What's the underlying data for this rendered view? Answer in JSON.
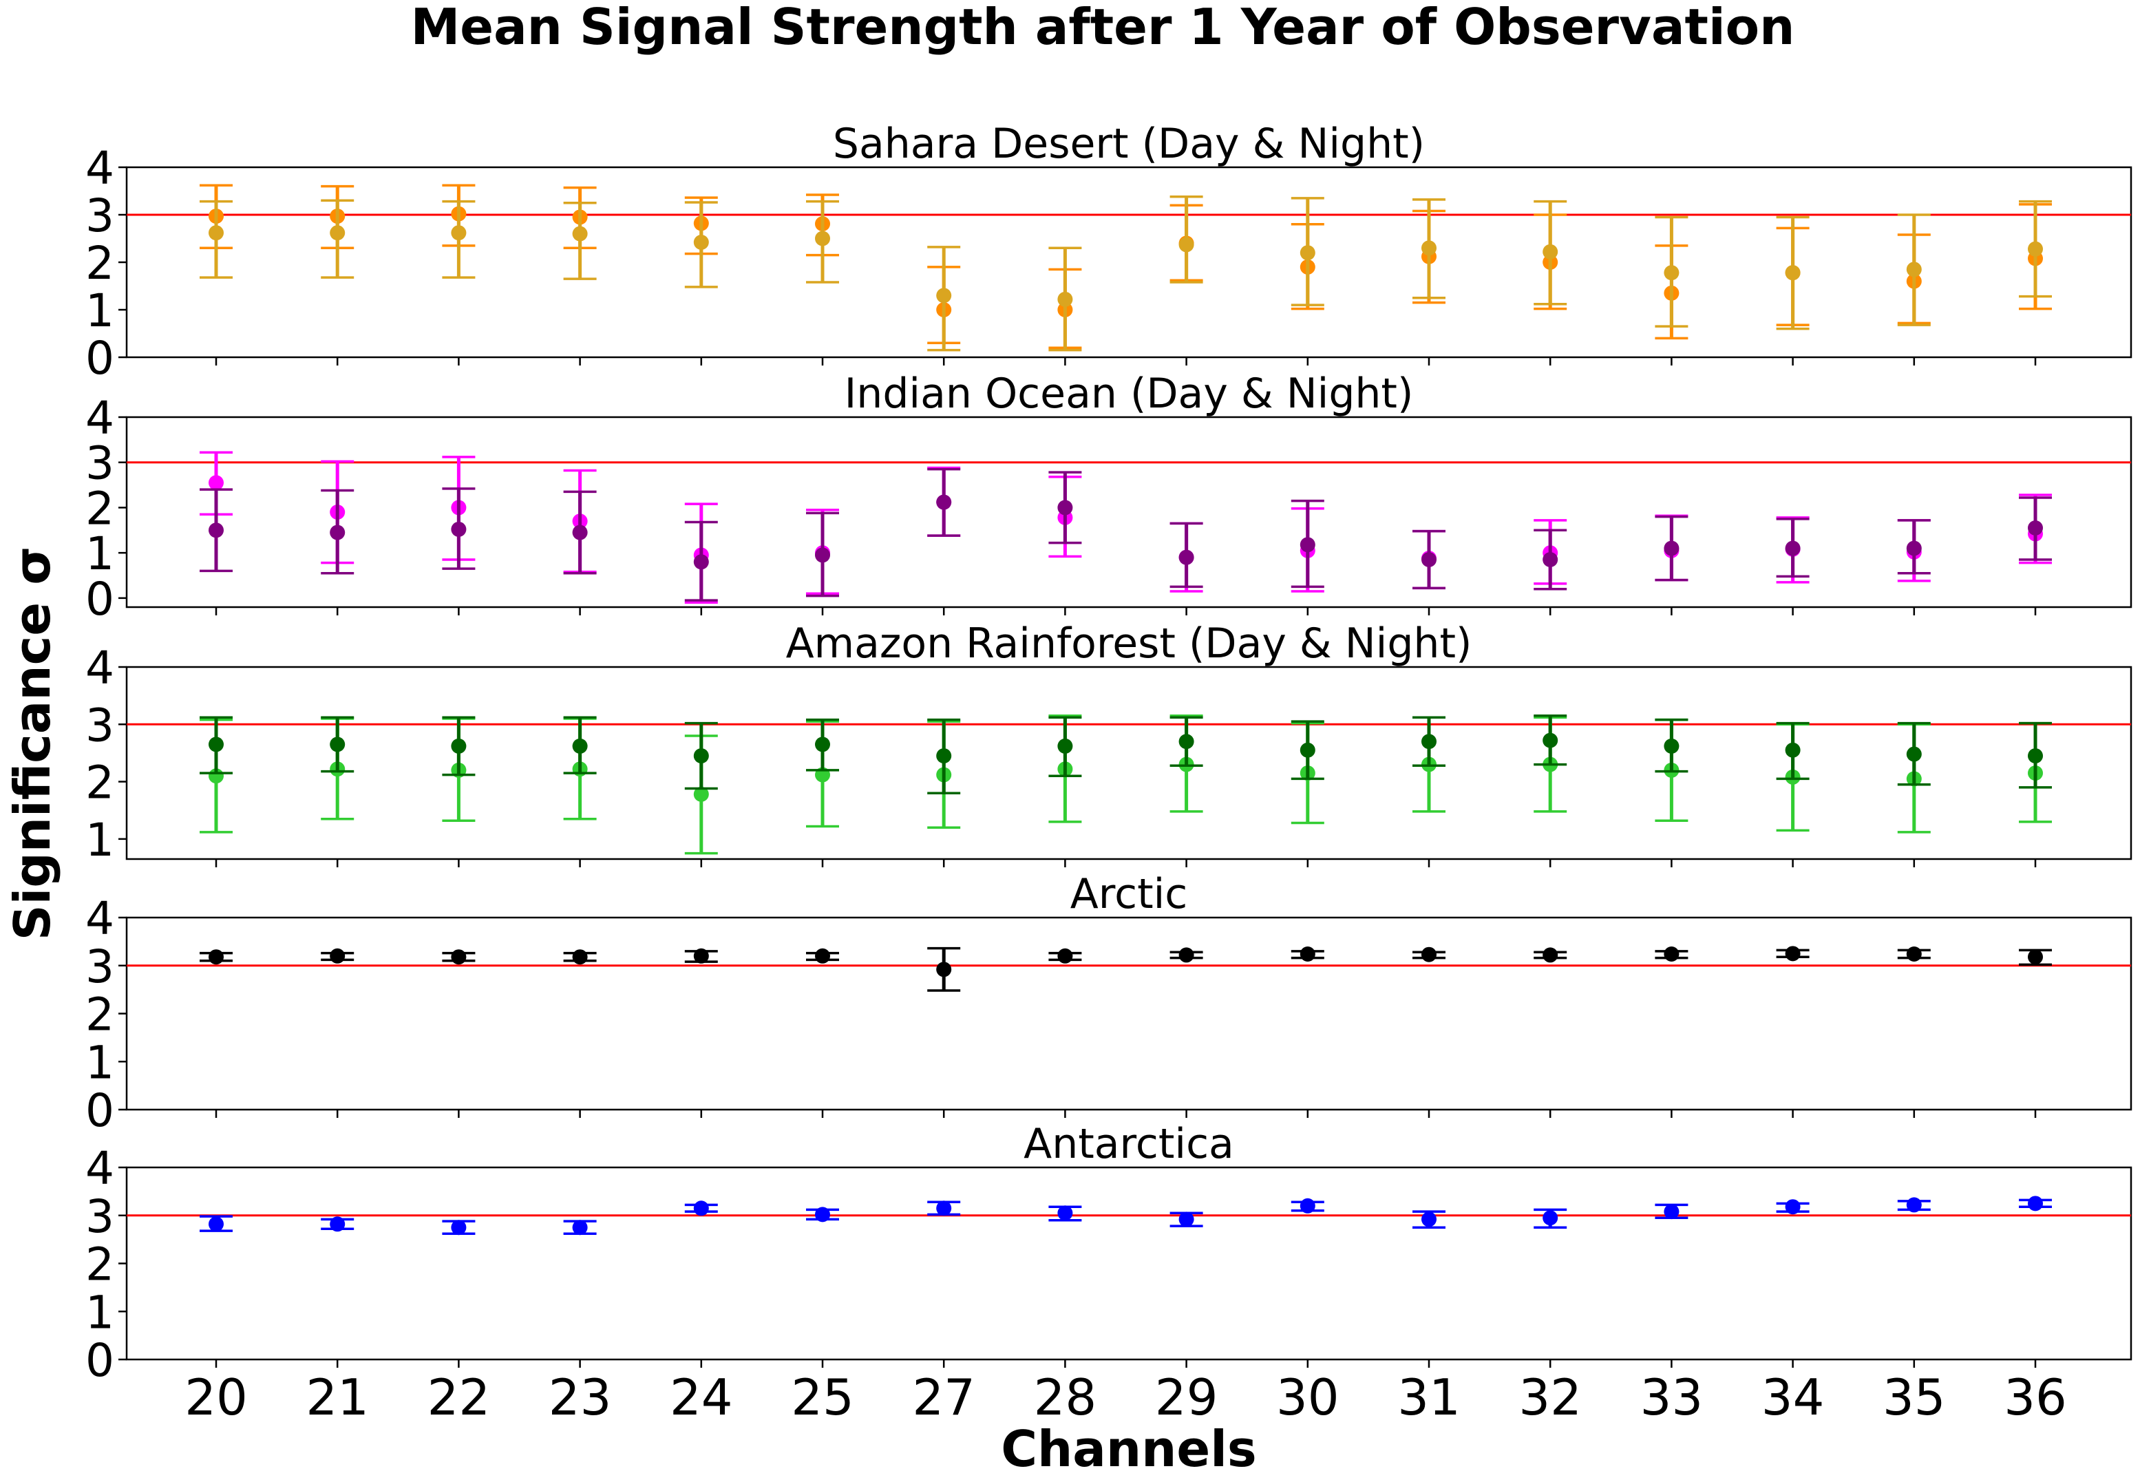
{
  "chart_data": {
    "type": "scatter",
    "title": "Mean Signal Strength after 1 Year of Observation",
    "xlabel": "Channels",
    "ylabel": "Significance σ",
    "categories": [
      "20",
      "21",
      "22",
      "23",
      "24",
      "25",
      "27",
      "28",
      "29",
      "30",
      "31",
      "32",
      "33",
      "34",
      "35",
      "36"
    ],
    "reference_line": {
      "y": 3,
      "color": "#ff0000"
    },
    "panels": [
      {
        "title": "Sahara Desert (Day & Night)",
        "ylim": [
          0,
          4
        ],
        "yticks": [
          0,
          1,
          2,
          3,
          4
        ],
        "series": [
          {
            "color": "#ff8c00",
            "values": [
              2.97,
              2.97,
              3.02,
              2.95,
              2.82,
              2.81,
              1.0,
              1.0,
              2.4,
              1.9,
              2.12,
              2.0,
              1.35,
              1.78,
              1.6,
              2.08
            ],
            "err_low": [
              2.3,
              2.3,
              2.35,
              2.3,
              2.18,
              2.15,
              0.3,
              0.2,
              1.62,
              1.02,
              1.15,
              1.02,
              0.4,
              0.68,
              0.72,
              1.02
            ],
            "err_high": [
              3.62,
              3.6,
              3.62,
              3.57,
              3.36,
              3.42,
              1.9,
              1.85,
              3.2,
              2.8,
              3.08,
              3.0,
              2.35,
              2.72,
              2.58,
              3.22
            ]
          },
          {
            "color": "#daa520",
            "values": [
              2.62,
              2.62,
              2.62,
              2.6,
              2.42,
              2.5,
              1.3,
              1.22,
              2.37,
              2.2,
              2.3,
              2.22,
              1.78,
              1.78,
              1.85,
              2.28
            ],
            "err_low": [
              1.68,
              1.68,
              1.68,
              1.65,
              1.48,
              1.58,
              0.15,
              0.15,
              1.58,
              1.1,
              1.25,
              1.12,
              0.65,
              0.6,
              0.68,
              1.28
            ],
            "err_high": [
              3.28,
              3.3,
              3.28,
              3.25,
              3.26,
              3.28,
              2.32,
              2.3,
              3.38,
              3.35,
              3.32,
              3.28,
              2.95,
              2.95,
              3.0,
              3.28
            ]
          }
        ]
      },
      {
        "title": "Indian Ocean (Day & Night)",
        "ylim": [
          -0.2,
          4
        ],
        "yticks": [
          0,
          1,
          2,
          3,
          4
        ],
        "series": [
          {
            "color": "#ff00ff",
            "values": [
              2.55,
              1.9,
              2.0,
              1.7,
              0.95,
              1.0,
              2.12,
              1.78,
              0.9,
              1.05,
              0.88,
              1.0,
              1.05,
              1.08,
              1.02,
              1.42
            ],
            "err_low": [
              1.85,
              0.78,
              0.85,
              0.58,
              -0.1,
              0.1,
              1.38,
              0.92,
              0.15,
              0.15,
              0.22,
              0.32,
              0.4,
              0.35,
              0.38,
              0.78
            ],
            "err_high": [
              3.22,
              3.02,
              3.12,
              2.82,
              2.08,
              1.95,
              2.88,
              2.68,
              1.65,
              1.98,
              1.48,
              1.72,
              1.82,
              1.78,
              1.72,
              2.28
            ]
          },
          {
            "color": "#800080",
            "values": [
              1.5,
              1.45,
              1.52,
              1.45,
              0.8,
              0.95,
              2.12,
              2.0,
              0.9,
              1.18,
              0.85,
              0.85,
              1.1,
              1.1,
              1.1,
              1.55
            ],
            "err_low": [
              0.6,
              0.55,
              0.65,
              0.55,
              -0.05,
              0.05,
              1.38,
              1.22,
              0.25,
              0.25,
              0.22,
              0.2,
              0.4,
              0.48,
              0.55,
              0.85
            ],
            "err_high": [
              2.4,
              2.38,
              2.42,
              2.35,
              1.68,
              1.88,
              2.85,
              2.78,
              1.65,
              2.15,
              1.48,
              1.5,
              1.8,
              1.75,
              1.72,
              2.22
            ]
          }
        ]
      },
      {
        "title": "Amazon Rainforest (Day & Night)",
        "ylim": [
          0.65,
          4
        ],
        "yticks": [
          1,
          2,
          3,
          4
        ],
        "series": [
          {
            "color": "#32cd32",
            "values": [
              2.1,
              2.22,
              2.2,
              2.22,
              1.78,
              2.12,
              2.12,
              2.22,
              2.3,
              2.15,
              2.3,
              2.3,
              2.2,
              2.08,
              2.05,
              2.15
            ],
            "err_low": [
              1.12,
              1.35,
              1.32,
              1.35,
              0.75,
              1.22,
              1.2,
              1.3,
              1.48,
              1.28,
              1.48,
              1.48,
              1.32,
              1.15,
              1.12,
              1.3
            ],
            "err_high": [
              3.08,
              3.1,
              3.1,
              3.1,
              2.8,
              3.05,
              3.05,
              3.15,
              3.15,
              3.02,
              3.12,
              3.12,
              3.08,
              3.0,
              3.0,
              3.02
            ]
          },
          {
            "color": "#006400",
            "values": [
              2.65,
              2.65,
              2.62,
              2.62,
              2.45,
              2.65,
              2.45,
              2.62,
              2.7,
              2.55,
              2.7,
              2.72,
              2.62,
              2.55,
              2.48,
              2.45
            ],
            "err_low": [
              2.15,
              2.18,
              2.12,
              2.15,
              1.88,
              2.2,
              1.8,
              2.1,
              2.28,
              2.05,
              2.28,
              2.3,
              2.18,
              2.05,
              1.95,
              1.9
            ],
            "err_high": [
              3.12,
              3.12,
              3.12,
              3.12,
              3.02,
              3.08,
              3.08,
              3.12,
              3.12,
              3.05,
              3.12,
              3.15,
              3.08,
              3.02,
              3.02,
              3.02
            ]
          }
        ]
      },
      {
        "title": "Arctic",
        "ylim": [
          0,
          4
        ],
        "yticks": [
          0,
          1,
          2,
          3,
          4
        ],
        "series": [
          {
            "color": "#000000",
            "values": [
              3.18,
              3.2,
              3.18,
              3.18,
              3.2,
              3.2,
              2.92,
              3.2,
              3.22,
              3.24,
              3.23,
              3.22,
              3.24,
              3.25,
              3.24,
              3.18
            ],
            "err_low": [
              3.1,
              3.12,
              3.1,
              3.1,
              3.08,
              3.12,
              2.48,
              3.12,
              3.16,
              3.16,
              3.16,
              3.16,
              3.16,
              3.18,
              3.16,
              3.02
            ],
            "err_high": [
              3.26,
              3.26,
              3.26,
              3.26,
              3.3,
              3.26,
              3.36,
              3.26,
              3.28,
              3.3,
              3.28,
              3.28,
              3.3,
              3.32,
              3.32,
              3.32
            ]
          }
        ]
      },
      {
        "title": "Antarctica",
        "ylim": [
          0,
          4
        ],
        "yticks": [
          0,
          1,
          2,
          3,
          4
        ],
        "series": [
          {
            "color": "#0000ff",
            "values": [
              2.82,
              2.82,
              2.75,
              2.75,
              3.15,
              3.02,
              3.15,
              3.05,
              2.92,
              3.2,
              2.92,
              2.95,
              3.08,
              3.18,
              3.22,
              3.25
            ],
            "err_low": [
              2.68,
              2.72,
              2.62,
              2.62,
              3.08,
              2.92,
              3.02,
              2.9,
              2.78,
              3.1,
              2.75,
              2.75,
              2.95,
              3.08,
              3.12,
              3.18
            ],
            "err_high": [
              2.98,
              2.92,
              2.88,
              2.88,
              3.22,
              3.12,
              3.28,
              3.18,
              3.05,
              3.28,
              3.08,
              3.12,
              3.22,
              3.25,
              3.3,
              3.32
            ]
          }
        ]
      }
    ]
  }
}
